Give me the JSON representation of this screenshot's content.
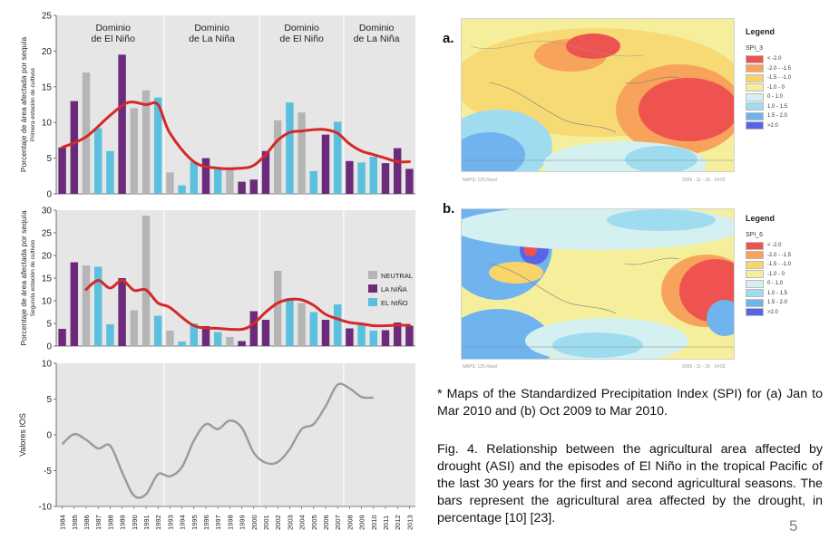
{
  "chart_data": [
    {
      "type": "bar",
      "ylabel": "Porcentaje de área afectada por sequía",
      "ylabel2": "Primera estación de cultivos",
      "ylim": [
        0,
        25
      ],
      "yticks": [
        0,
        5,
        10,
        15,
        20,
        25
      ],
      "x": [
        1984,
        1985,
        1986,
        1987,
        1988,
        1989,
        1990,
        1991,
        1992,
        1993,
        1994,
        1995,
        1996,
        1997,
        1998,
        1999,
        2000,
        2001,
        2002,
        2003,
        2004,
        2005,
        2006,
        2007,
        2008,
        2009,
        2010,
        2011,
        2012,
        2013
      ],
      "values": [
        6.5,
        13,
        17,
        9.2,
        6,
        19.5,
        12,
        14.5,
        13.5,
        3,
        1.2,
        4.5,
        5,
        3.5,
        3.5,
        1.7,
        2,
        6,
        10.3,
        12.8,
        11.4,
        3.2,
        8.3,
        10.1,
        4.6,
        4.4,
        5.2,
        4.3,
        6.4,
        3.5
      ],
      "episode": [
        "LA NIÑA",
        "LA NIÑA",
        "NEUTRAL",
        "EL NIÑO",
        "EL NIÑO",
        "LA NIÑA",
        "NEUTRAL",
        "NEUTRAL",
        "EL NIÑO",
        "NEUTRAL",
        "EL NIÑO",
        "EL NIÑO",
        "LA NIÑA",
        "EL NIÑO",
        "NEUTRAL",
        "LA NIÑA",
        "LA NIÑA",
        "LA NIÑA",
        "NEUTRAL",
        "EL NIÑO",
        "NEUTRAL",
        "EL NIÑO",
        "LA NIÑA",
        "EL NIÑO",
        "LA NIÑA",
        "EL NIÑO",
        "EL NIÑO",
        "LA NIÑA",
        "LA NIÑA",
        "LA NIÑA"
      ],
      "trend_x": [
        1984,
        1986,
        1988,
        1989.5,
        1991,
        1992,
        1993,
        1995,
        1997,
        1999,
        2000,
        2001,
        2002,
        2003,
        2004,
        2005,
        2006,
        2007,
        2008,
        2009,
        2010,
        2011,
        2012,
        2013
      ],
      "trend_y": [
        6.5,
        8,
        11,
        12.8,
        12.5,
        12.5,
        8.5,
        4.5,
        3.6,
        3.6,
        4,
        5.5,
        7.5,
        8.6,
        8.8,
        9,
        9,
        8.5,
        7,
        6,
        5.5,
        5,
        4.5,
        4.5
      ],
      "trend_color": "#d62828",
      "periods": [
        "Dominio\nde El Niño",
        "Dominio\nde La Niña",
        "Dominio\nde El Niño",
        "Dominio\nde La Niña"
      ],
      "period_breaks": [
        1984,
        1992.5,
        2000.5,
        2007.5,
        2013
      ]
    },
    {
      "type": "bar",
      "ylabel": "Porcentaje de área afectada por sequía",
      "ylabel2": "Segunda estación de cultivos",
      "ylim": [
        0,
        30
      ],
      "yticks": [
        0,
        5,
        10,
        15,
        20,
        25,
        30
      ],
      "x": [
        1984,
        1985,
        1986,
        1987,
        1988,
        1989,
        1990,
        1991,
        1992,
        1993,
        1994,
        1995,
        1996,
        1997,
        1998,
        1999,
        2000,
        2001,
        2002,
        2003,
        2004,
        2005,
        2006,
        2007,
        2008,
        2009,
        2010,
        2011,
        2012,
        2013
      ],
      "values": [
        3.8,
        18.5,
        17.8,
        17.5,
        4.8,
        15,
        7.9,
        28.8,
        6.7,
        3.4,
        1,
        5,
        4.4,
        3.1,
        2,
        1.1,
        7.7,
        5.8,
        16.6,
        10.6,
        9.5,
        7.5,
        5.8,
        9.2,
        3.9,
        4.8,
        3.4,
        3.5,
        5.2,
        4.5
      ],
      "episode": [
        "LA NIÑA",
        "LA NIÑA",
        "NEUTRAL",
        "EL NIÑO",
        "EL NIÑO",
        "LA NIÑA",
        "NEUTRAL",
        "NEUTRAL",
        "EL NIÑO",
        "NEUTRAL",
        "EL NIÑO",
        "EL NIÑO",
        "LA NIÑA",
        "EL NIÑO",
        "NEUTRAL",
        "LA NIÑA",
        "LA NIÑA",
        "LA NIÑA",
        "NEUTRAL",
        "EL NIÑO",
        "NEUTRAL",
        "EL NIÑO",
        "LA NIÑA",
        "EL NIÑO",
        "LA NIÑA",
        "EL NIÑO",
        "EL NIÑO",
        "LA NIÑA",
        "LA NIÑA",
        "LA NIÑA"
      ],
      "trend_x": [
        1986,
        1987,
        1988,
        1989,
        1990,
        1991,
        1992,
        1993,
        1995,
        1997,
        1999,
        2000,
        2001,
        2002,
        2003,
        2004,
        2005,
        2006,
        2007,
        2008,
        2009,
        2010,
        2011,
        2012,
        2013
      ],
      "trend_y": [
        12.5,
        14.5,
        12.8,
        14.5,
        12.3,
        12.4,
        9.5,
        8.5,
        4.5,
        3.9,
        3.7,
        5,
        7.5,
        9.5,
        10.3,
        10.2,
        9,
        7,
        6,
        5.2,
        4.9,
        4.5,
        4.5,
        4.6,
        4.6
      ],
      "trend_color": "#d62828",
      "legend": [
        "NEUTRAL",
        "LA NIÑA",
        "EL NIÑO"
      ],
      "periods": [
        "",
        "",
        "",
        ""
      ],
      "period_breaks": [
        1984,
        1992.5,
        2000.5,
        2007.5,
        2013
      ]
    },
    {
      "type": "line",
      "ylabel": "Valores IOS",
      "ylim": [
        -10,
        10
      ],
      "yticks": [
        -10,
        -5,
        0,
        5,
        10
      ],
      "x": [
        1984,
        1985,
        1986,
        1987,
        1988,
        1989,
        1990,
        1991,
        1992,
        1993,
        1994,
        1995,
        1996,
        1997,
        1998,
        1999,
        2000,
        2001,
        2002,
        2003,
        2004,
        2005,
        2006,
        2007,
        2008,
        2009,
        2010
      ],
      "y": [
        -1.3,
        0.1,
        -0.7,
        -1.9,
        -1.5,
        -5.2,
        -8.5,
        -8.3,
        -5.5,
        -5.8,
        -4.5,
        -0.8,
        1.5,
        0.8,
        2,
        1,
        -2.5,
        -3.9,
        -3.8,
        -2,
        0.8,
        1.5,
        4,
        7,
        6.5,
        5.3,
        5.2
      ],
      "line_color": "#9a9a9a",
      "period_breaks": [
        1984,
        1992.5,
        2000.5,
        2007.5,
        2013
      ]
    }
  ],
  "colors": {
    "NEUTRAL": "#b5b5b5",
    "LA NIÑA": "#6b2a7a",
    "EL NIÑO": "#5bc0de",
    "panel_bg": "#e6e6e6"
  },
  "maps": {
    "a": {
      "letter": "a.",
      "legend_title": "Legend",
      "variable": "SPI_3",
      "classes": [
        "< -2.0",
        "-2.0 - -1.5",
        "-1.5 - -1.0",
        "-1.0 - 0",
        "0 - 1.0",
        "1.0 - 1.5",
        "1.5 - 2.0",
        ">2.0"
      ],
      "class_colors": [
        "#ef5350",
        "#f7a35c",
        "#f9d46b",
        "#f5ef9c",
        "#d4f0f0",
        "#9fdcf0",
        "#6fb3ef",
        "#5a63e6"
      ],
      "footer_left": "NAPS: 125 Ravd",
      "footer_right": "2009 - 11 - 18 · 14:02"
    },
    "b": {
      "letter": "b.",
      "legend_title": "Legend",
      "variable": "SPI_6",
      "classes": [
        "< -2.0",
        "-2.0 - -1.5",
        "-1.5 - -1.0",
        "-1.0 - 0",
        "0 - 1.0",
        "1.0 - 1.5",
        "1.5 - 2.0",
        ">2.0"
      ],
      "class_colors": [
        "#ef5350",
        "#f7a35c",
        "#f9d46b",
        "#f5ef9c",
        "#d4f0f0",
        "#9fdcf0",
        "#6fb3ef",
        "#5a63e6"
      ],
      "footer_left": "NAPS: 125 Ravd",
      "footer_right": "2009 - 11 - 18 · 14:02"
    }
  },
  "captions": {
    "spi_note": "*  Maps of the Standardized Precipitation Index (SPI) for (a) Jan to Mar 2010 and (b) Oct 2009 to Mar 2010.",
    "figure": "Fig. 4. Relationship between the agricultural area affected by drought (ASI) and the episodes of El Niño in the tropical Pacific of the last 30 years for the first and second agricultural seasons. The bars represent the agricultural area affected by the drought, in percentage [10] [23]."
  },
  "page_number": "5"
}
